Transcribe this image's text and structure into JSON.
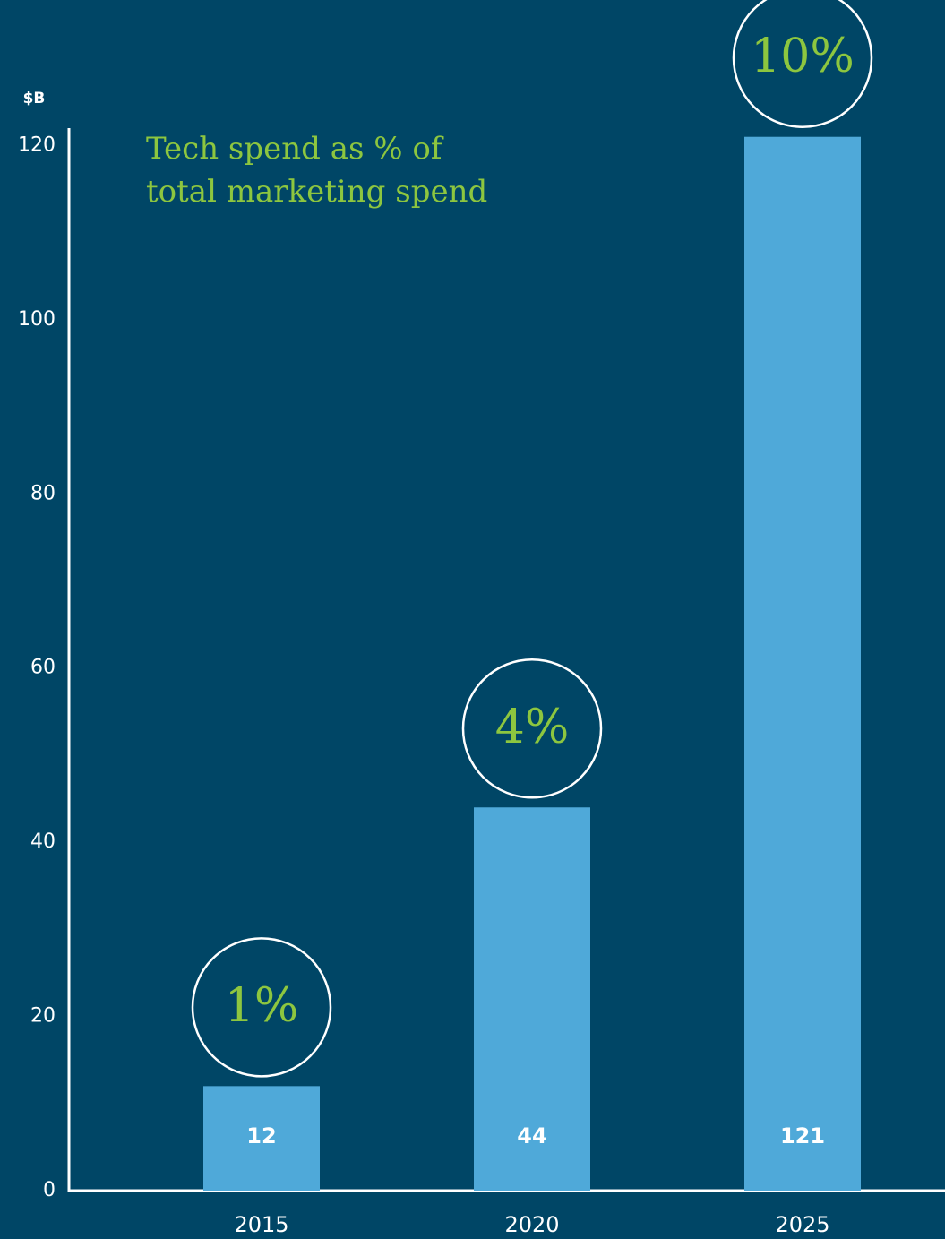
{
  "chart_data": {
    "type": "bar",
    "title": "Tech spend as % of total marketing spend",
    "y_unit": "$B",
    "categories": [
      "2015",
      "2020",
      "2025"
    ],
    "values": [
      12,
      44,
      121
    ],
    "share_labels": [
      "1%",
      "4%",
      "10%"
    ],
    "color": "#4fa9d9",
    "ylim": [
      0,
      122
    ],
    "yticks": [
      0,
      20,
      40,
      60,
      80,
      100,
      120
    ],
    "grid": false
  }
}
